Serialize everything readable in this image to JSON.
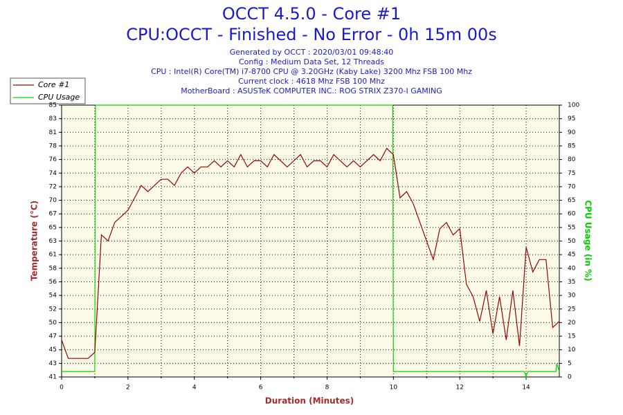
{
  "chart_data": {
    "type": "line",
    "title": "OCCT 4.5.0 - Core #1",
    "subtitle": "CPU:OCCT - Finished - No Error - 0h 15m 00s",
    "info": [
      "Generated by OCCT : 2020/03/01 09:48:40",
      "Config : Medium Data Set, 12 Threads",
      "CPU : Intel(R) Core(TM) i7-8700 CPU @ 3.20GHz (Kaby Lake) 3200 Mhz FSB 100 Mhz",
      "Current clock : 4618 Mhz FSB 100 Mhz",
      "MotherBoard : ASUSTeK COMPUTER INC.: ROG STRIX Z370-I GAMING"
    ],
    "x_label": "Duration (Minutes)",
    "y_label": "Temperature (°C)",
    "y2_label": "CPU Usage (in %)",
    "xlim": [
      0,
      15
    ],
    "xticks": [
      0,
      2,
      4,
      6,
      8,
      10,
      12,
      14
    ],
    "xgrid_minor": [
      1,
      3,
      5,
      7,
      9,
      11,
      13
    ],
    "ylim": [
      41,
      85
    ],
    "yticks": [
      {
        "value": 41,
        "label": "41"
      },
      {
        "value": 43.2,
        "label": "43"
      },
      {
        "value": 45.4,
        "label": "45"
      },
      {
        "value": 47.6,
        "label": "47"
      },
      {
        "value": 49.8,
        "label": "50"
      },
      {
        "value": 52,
        "label": "52"
      },
      {
        "value": 54.2,
        "label": "54"
      },
      {
        "value": 56.4,
        "label": "56"
      },
      {
        "value": 58.6,
        "label": "58"
      },
      {
        "value": 60.8,
        "label": "61"
      },
      {
        "value": 63,
        "label": "63"
      },
      {
        "value": 65.2,
        "label": "65"
      },
      {
        "value": 67.4,
        "label": "67"
      },
      {
        "value": 69.6,
        "label": "70"
      },
      {
        "value": 71.8,
        "label": "72"
      },
      {
        "value": 74,
        "label": "74"
      },
      {
        "value": 76.2,
        "label": "76"
      },
      {
        "value": 78.4,
        "label": "78"
      },
      {
        "value": 80.6,
        "label": "81"
      },
      {
        "value": 82.8,
        "label": "83"
      },
      {
        "value": 85,
        "label": "85"
      }
    ],
    "y2lim": [
      0,
      100
    ],
    "y2ticks": [
      0,
      5,
      10,
      15,
      20,
      25,
      30,
      35,
      40,
      45,
      50,
      55,
      60,
      65,
      70,
      75,
      80,
      85,
      90,
      95,
      100
    ],
    "grid": true,
    "series": [
      {
        "name": "Core #1",
        "color": "#990000",
        "x": [
          0,
          0.2,
          0.4,
          0.6,
          0.8,
          1.0,
          1.2,
          1.4,
          1.6,
          1.8,
          2.0,
          2.2,
          2.4,
          2.6,
          2.8,
          3.0,
          3.2,
          3.4,
          3.6,
          3.8,
          4.0,
          4.2,
          4.4,
          4.6,
          4.8,
          5.0,
          5.2,
          5.4,
          5.6,
          5.8,
          6.0,
          6.2,
          6.4,
          6.6,
          6.8,
          7.0,
          7.2,
          7.4,
          7.6,
          7.8,
          8.0,
          8.2,
          8.4,
          8.6,
          8.8,
          9.0,
          9.2,
          9.4,
          9.6,
          9.8,
          10.0,
          10.2,
          10.4,
          10.6,
          10.8,
          11.0,
          11.2,
          11.4,
          11.6,
          11.8,
          12.0,
          12.2,
          12.4,
          12.6,
          12.8,
          13.0,
          13.2,
          13.4,
          13.6,
          13.8,
          14.0,
          14.2,
          14.4,
          14.6,
          14.8,
          15.0
        ],
        "values": [
          47,
          44,
          44,
          44,
          44,
          45,
          64,
          63,
          66,
          67,
          68,
          70,
          72,
          71,
          72,
          73,
          73,
          72,
          74,
          75,
          74,
          75,
          75,
          76,
          75,
          76,
          75,
          77,
          75,
          76,
          76,
          75,
          77,
          76,
          75,
          76,
          77,
          75,
          76,
          76,
          75,
          77,
          76,
          75,
          76,
          75,
          76,
          77,
          76,
          78,
          77,
          70,
          71,
          69,
          66,
          63,
          60,
          65,
          66,
          64,
          65,
          56,
          54,
          50,
          55,
          48,
          54,
          47,
          55,
          46,
          62,
          58,
          60,
          60,
          49,
          50
        ]
      },
      {
        "name": "CPU Usage",
        "color": "#00dd00",
        "axis": "y2",
        "x": [
          0,
          1,
          1.02,
          9.98,
          10,
          13.95,
          14,
          14.05,
          14.9,
          14.92,
          15
        ],
        "values": [
          2,
          2,
          100,
          100,
          2,
          2,
          0,
          2,
          2,
          5,
          2
        ]
      }
    ]
  }
}
